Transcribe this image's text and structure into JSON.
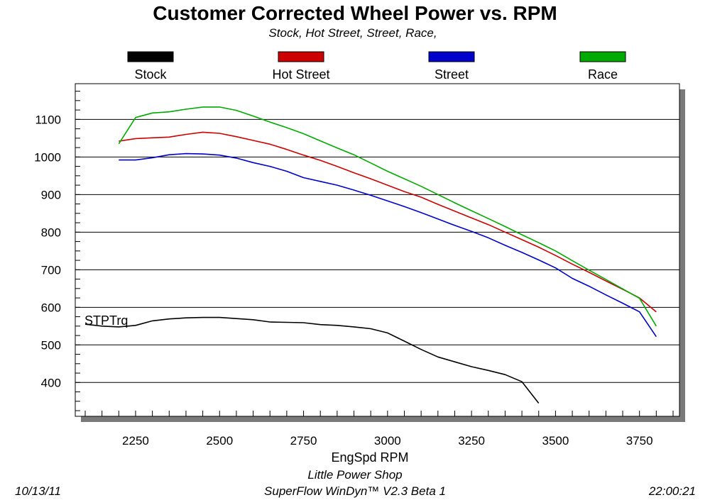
{
  "header": {
    "title": "Customer Corrected Wheel Power vs. RPM",
    "subtitle": "Stock, Hot Street, Street, Race,"
  },
  "footer": {
    "shop": "Little Power Shop",
    "date": "10/13/11",
    "software": "SuperFlow WinDyn™ V2.3 Beta 1",
    "time": "22:00:21"
  },
  "chart_data": {
    "type": "line",
    "xlabel": "EngSpd  RPM",
    "ylabel": "",
    "xlim": [
      2100,
      3850
    ],
    "ylim": [
      310,
      1195
    ],
    "x_ticks": [
      2250,
      2500,
      2750,
      3000,
      3250,
      3500,
      3750
    ],
    "y_ticks": [
      400,
      500,
      600,
      700,
      800,
      900,
      1000,
      1100
    ],
    "grid": "horizontal",
    "legend_position": "top",
    "annotation": {
      "text": "STPTrq",
      "x": 2100,
      "y": 572
    },
    "series": [
      {
        "name": "Stock",
        "color": "#000000",
        "points": [
          [
            2100,
            555
          ],
          [
            2150,
            550
          ],
          [
            2200,
            548
          ],
          [
            2250,
            552
          ],
          [
            2300,
            564
          ],
          [
            2350,
            569
          ],
          [
            2400,
            572
          ],
          [
            2450,
            573
          ],
          [
            2500,
            573
          ],
          [
            2550,
            570
          ],
          [
            2600,
            567
          ],
          [
            2650,
            561
          ],
          [
            2700,
            560
          ],
          [
            2750,
            559
          ],
          [
            2800,
            554
          ],
          [
            2850,
            552
          ],
          [
            2900,
            548
          ],
          [
            2950,
            543
          ],
          [
            3000,
            532
          ],
          [
            3050,
            510
          ],
          [
            3100,
            488
          ],
          [
            3150,
            468
          ],
          [
            3200,
            455
          ],
          [
            3250,
            442
          ],
          [
            3300,
            432
          ],
          [
            3350,
            421
          ],
          [
            3400,
            402
          ],
          [
            3450,
            345
          ]
        ]
      },
      {
        "name": "Hot Street",
        "color": "#cc0000",
        "points": [
          [
            2200,
            1042
          ],
          [
            2250,
            1049
          ],
          [
            2300,
            1051
          ],
          [
            2350,
            1053
          ],
          [
            2400,
            1060
          ],
          [
            2450,
            1066
          ],
          [
            2500,
            1063
          ],
          [
            2550,
            1054
          ],
          [
            2600,
            1044
          ],
          [
            2650,
            1034
          ],
          [
            2700,
            1020
          ],
          [
            2750,
            1005
          ],
          [
            2800,
            991
          ],
          [
            2850,
            975
          ],
          [
            2900,
            958
          ],
          [
            2950,
            942
          ],
          [
            3000,
            925
          ],
          [
            3050,
            908
          ],
          [
            3100,
            893
          ],
          [
            3150,
            874
          ],
          [
            3200,
            856
          ],
          [
            3250,
            838
          ],
          [
            3300,
            820
          ],
          [
            3350,
            800
          ],
          [
            3400,
            780
          ],
          [
            3450,
            760
          ],
          [
            3500,
            738
          ],
          [
            3550,
            715
          ],
          [
            3600,
            693
          ],
          [
            3650,
            670
          ],
          [
            3700,
            648
          ],
          [
            3750,
            625
          ],
          [
            3800,
            588
          ]
        ]
      },
      {
        "name": "Street",
        "color": "#0000cc",
        "points": [
          [
            2200,
            992
          ],
          [
            2250,
            992
          ],
          [
            2300,
            998
          ],
          [
            2350,
            1006
          ],
          [
            2400,
            1009
          ],
          [
            2450,
            1008
          ],
          [
            2500,
            1005
          ],
          [
            2550,
            997
          ],
          [
            2600,
            985
          ],
          [
            2650,
            975
          ],
          [
            2700,
            962
          ],
          [
            2750,
            945
          ],
          [
            2800,
            935
          ],
          [
            2850,
            925
          ],
          [
            2900,
            912
          ],
          [
            2950,
            898
          ],
          [
            3000,
            883
          ],
          [
            3050,
            868
          ],
          [
            3100,
            852
          ],
          [
            3150,
            835
          ],
          [
            3200,
            818
          ],
          [
            3250,
            802
          ],
          [
            3300,
            785
          ],
          [
            3350,
            765
          ],
          [
            3400,
            746
          ],
          [
            3450,
            726
          ],
          [
            3500,
            705
          ],
          [
            3550,
            677
          ],
          [
            3600,
            656
          ],
          [
            3650,
            633
          ],
          [
            3700,
            611
          ],
          [
            3750,
            588
          ],
          [
            3800,
            522
          ]
        ]
      },
      {
        "name": "Race",
        "color": "#00aa00",
        "points": [
          [
            2200,
            1035
          ],
          [
            2250,
            1105
          ],
          [
            2300,
            1117
          ],
          [
            2350,
            1120
          ],
          [
            2400,
            1127
          ],
          [
            2450,
            1133
          ],
          [
            2500,
            1133
          ],
          [
            2550,
            1124
          ],
          [
            2600,
            1109
          ],
          [
            2650,
            1093
          ],
          [
            2700,
            1078
          ],
          [
            2750,
            1062
          ],
          [
            2800,
            1043
          ],
          [
            2850,
            1024
          ],
          [
            2900,
            1006
          ],
          [
            2950,
            984
          ],
          [
            3000,
            962
          ],
          [
            3050,
            942
          ],
          [
            3100,
            922
          ],
          [
            3150,
            900
          ],
          [
            3200,
            878
          ],
          [
            3250,
            857
          ],
          [
            3300,
            836
          ],
          [
            3350,
            815
          ],
          [
            3400,
            793
          ],
          [
            3450,
            772
          ],
          [
            3500,
            750
          ],
          [
            3550,
            724
          ],
          [
            3600,
            699
          ],
          [
            3650,
            674
          ],
          [
            3700,
            649
          ],
          [
            3750,
            624
          ],
          [
            3800,
            550
          ]
        ]
      }
    ]
  }
}
